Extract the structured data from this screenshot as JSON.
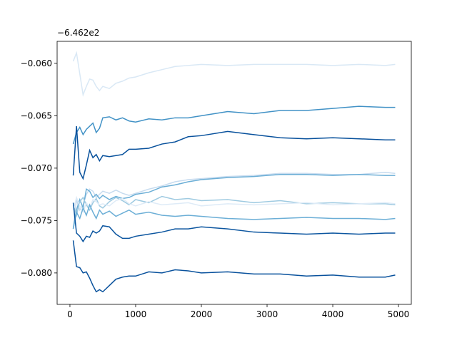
{
  "chart_data": {
    "type": "line",
    "offset_text": "−6.462e2",
    "x": [
      50,
      100,
      150,
      200,
      250,
      300,
      350,
      400,
      450,
      500,
      600,
      700,
      800,
      900,
      1000,
      1200,
      1400,
      1600,
      1800,
      2000,
      2400,
      2800,
      3200,
      3600,
      4000,
      4400,
      4800,
      4950
    ],
    "series": [
      {
        "color": "#d9e8f5",
        "values": [
          -0.0598,
          -0.059,
          -0.061,
          -0.063,
          -0.0622,
          -0.0615,
          -0.0616,
          -0.0622,
          -0.0626,
          -0.0622,
          -0.0624,
          -0.0619,
          -0.0617,
          -0.0614,
          -0.0613,
          -0.0609,
          -0.0606,
          -0.0603,
          -0.0602,
          -0.0601,
          -0.0602,
          -0.0601,
          -0.0601,
          -0.0601,
          -0.0602,
          -0.0601,
          -0.0602,
          -0.0601
        ]
      },
      {
        "color": "#4292c6",
        "values": [
          -0.0677,
          -0.0666,
          -0.0661,
          -0.0668,
          -0.0663,
          -0.066,
          -0.0657,
          -0.0666,
          -0.0662,
          -0.0652,
          -0.0651,
          -0.0654,
          -0.0652,
          -0.0655,
          -0.0656,
          -0.0653,
          -0.0654,
          -0.0652,
          -0.0652,
          -0.065,
          -0.0646,
          -0.0648,
          -0.0645,
          -0.0645,
          -0.0643,
          -0.0641,
          -0.0642,
          -0.0642
        ]
      },
      {
        "color": "#08519c",
        "values": [
          -0.0707,
          -0.066,
          -0.0704,
          -0.071,
          -0.0697,
          -0.0683,
          -0.069,
          -0.0687,
          -0.0693,
          -0.0688,
          -0.0689,
          -0.0688,
          -0.0687,
          -0.0682,
          -0.0682,
          -0.0681,
          -0.0677,
          -0.0675,
          -0.067,
          -0.0669,
          -0.0665,
          -0.0668,
          -0.0671,
          -0.0672,
          -0.0671,
          -0.0672,
          -0.0673,
          -0.0673
        ]
      },
      {
        "color": "#c6dbef",
        "values": [
          -0.0757,
          -0.073,
          -0.074,
          -0.0735,
          -0.0725,
          -0.072,
          -0.0722,
          -0.0728,
          -0.0725,
          -0.0722,
          -0.0724,
          -0.0721,
          -0.0724,
          -0.0726,
          -0.0724,
          -0.072,
          -0.0717,
          -0.0713,
          -0.0711,
          -0.071,
          -0.0708,
          -0.0707,
          -0.0705,
          -0.0705,
          -0.0706,
          -0.0706,
          -0.0704,
          -0.0705
        ]
      },
      {
        "color": "#6baed6",
        "values": [
          -0.0758,
          -0.074,
          -0.073,
          -0.0738,
          -0.072,
          -0.0722,
          -0.0728,
          -0.0725,
          -0.0729,
          -0.0726,
          -0.073,
          -0.0727,
          -0.0729,
          -0.0728,
          -0.0725,
          -0.0723,
          -0.0718,
          -0.0716,
          -0.0713,
          -0.0711,
          -0.0709,
          -0.0708,
          -0.0706,
          -0.0706,
          -0.0707,
          -0.0706,
          -0.0707,
          -0.0707
        ]
      },
      {
        "color": "#9ecae1",
        "values": [
          -0.0735,
          -0.0745,
          -0.0732,
          -0.0728,
          -0.0735,
          -0.074,
          -0.0733,
          -0.0729,
          -0.0736,
          -0.0738,
          -0.0732,
          -0.0728,
          -0.0731,
          -0.0735,
          -0.073,
          -0.0733,
          -0.0727,
          -0.073,
          -0.0729,
          -0.0731,
          -0.073,
          -0.0733,
          -0.0731,
          -0.0734,
          -0.0733,
          -0.0734,
          -0.0734,
          -0.0735
        ]
      },
      {
        "color": "#deebf7",
        "values": [
          -0.074,
          -0.0728,
          -0.0736,
          -0.0742,
          -0.0733,
          -0.0738,
          -0.073,
          -0.0732,
          -0.0735,
          -0.0734,
          -0.0736,
          -0.0731,
          -0.0729,
          -0.0734,
          -0.0736,
          -0.0732,
          -0.0735,
          -0.0734,
          -0.0733,
          -0.0736,
          -0.0734,
          -0.0735,
          -0.0734,
          -0.0733,
          -0.0735,
          -0.0734,
          -0.0733,
          -0.0734
        ]
      },
      {
        "color": "#6baed6",
        "values": [
          -0.0758,
          -0.0742,
          -0.0748,
          -0.0738,
          -0.0745,
          -0.0735,
          -0.0742,
          -0.0748,
          -0.074,
          -0.0744,
          -0.0741,
          -0.0746,
          -0.0743,
          -0.074,
          -0.0744,
          -0.0742,
          -0.0745,
          -0.0746,
          -0.0745,
          -0.0746,
          -0.0748,
          -0.0749,
          -0.0748,
          -0.0747,
          -0.0748,
          -0.0748,
          -0.0749,
          -0.0748
        ]
      },
      {
        "color": "#0b559f",
        "values": [
          -0.0733,
          -0.0762,
          -0.0765,
          -0.077,
          -0.0765,
          -0.0766,
          -0.076,
          -0.0762,
          -0.076,
          -0.0755,
          -0.0756,
          -0.0763,
          -0.0767,
          -0.0767,
          -0.0765,
          -0.0763,
          -0.0761,
          -0.0758,
          -0.0758,
          -0.0756,
          -0.0758,
          -0.0761,
          -0.0762,
          -0.0763,
          -0.0762,
          -0.0763,
          -0.0762,
          -0.0762
        ]
      },
      {
        "color": "#08519c",
        "values": [
          -0.0769,
          -0.0794,
          -0.0795,
          -0.08,
          -0.0799,
          -0.0805,
          -0.0812,
          -0.0818,
          -0.0816,
          -0.0818,
          -0.0812,
          -0.0806,
          -0.0804,
          -0.0803,
          -0.0803,
          -0.0799,
          -0.08,
          -0.0797,
          -0.0798,
          -0.08,
          -0.0799,
          -0.0801,
          -0.0801,
          -0.0803,
          -0.0802,
          -0.0804,
          -0.0804,
          -0.0802
        ]
      }
    ],
    "xlim": [
      -195,
      5195
    ],
    "xticks": [
      0,
      1000,
      2000,
      3000,
      4000,
      5000
    ],
    "ylim": [
      -0.083,
      -0.0579
    ],
    "yticks": [
      {
        "value": -0.08,
        "label": "−0.080"
      },
      {
        "value": -0.075,
        "label": "−0.075"
      },
      {
        "value": -0.07,
        "label": "−0.070"
      },
      {
        "value": -0.065,
        "label": "−0.065"
      },
      {
        "value": -0.06,
        "label": "−0.060"
      }
    ]
  }
}
